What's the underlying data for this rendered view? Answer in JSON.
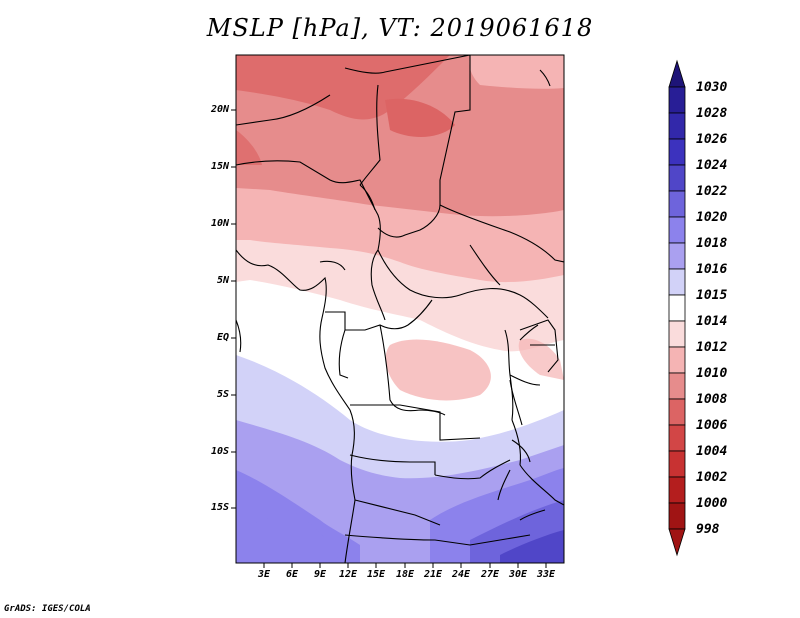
{
  "title": "MSLP [hPa], VT: 2019061618",
  "footer": "GrADS: IGES/COLA",
  "lat_labels": [
    "20N",
    "15N",
    "10N",
    "5N",
    "EQ",
    "5S",
    "10S",
    "15S"
  ],
  "lon_labels": [
    "3E",
    "6E",
    "9E",
    "12E",
    "15E",
    "18E",
    "21E",
    "24E",
    "27E",
    "30E",
    "33E"
  ],
  "colorbar": {
    "labels": [
      "1030",
      "1028",
      "1026",
      "1024",
      "1022",
      "1020",
      "1018",
      "1016",
      "1015",
      "1014",
      "1012",
      "1010",
      "1008",
      "1006",
      "1004",
      "1002",
      "1000",
      "998"
    ],
    "colors": [
      "#1e1478",
      "#281e96",
      "#3228aa",
      "#3c32be",
      "#5046c8",
      "#6e64dc",
      "#8c82ec",
      "#aaa0f0",
      "#d2d2f8",
      "#ffffff",
      "#fadcdc",
      "#f5b4b4",
      "#e68c8c",
      "#dc6464",
      "#d24646",
      "#c83232",
      "#b41e1e",
      "#a01414"
    ]
  }
}
